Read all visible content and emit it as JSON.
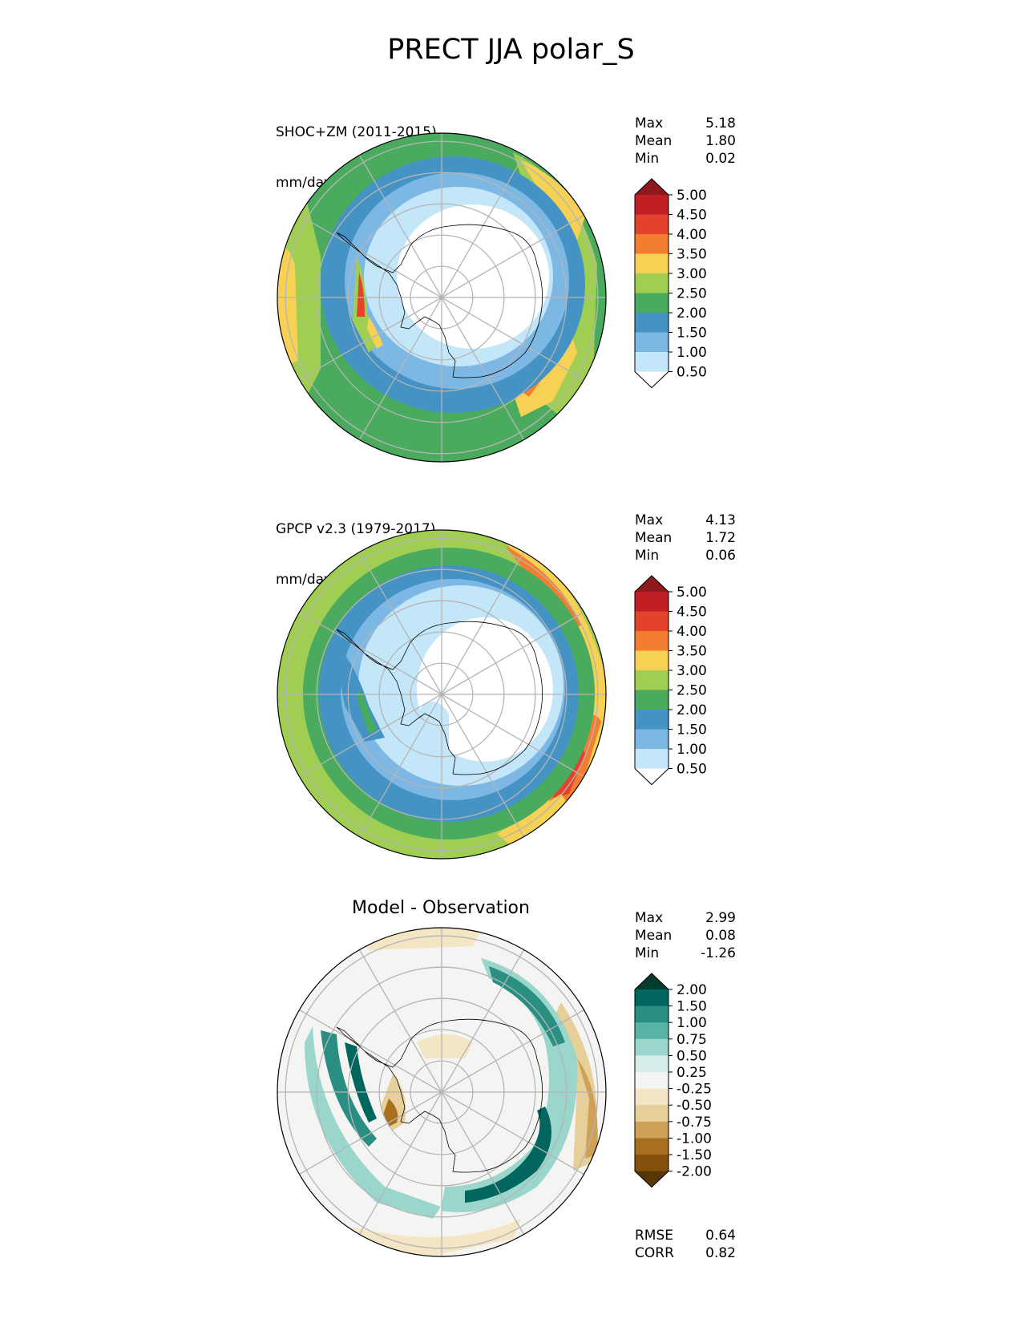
{
  "title": "PRECT JJA polar_S",
  "panels": [
    {
      "id": "model",
      "subtitle_line1": "SHOC+ZM (2011-2015)",
      "subtitle_line2": "mm/day",
      "stats": [
        {
          "label": "Max",
          "value": "5.18"
        },
        {
          "label": "Mean",
          "value": "1.80"
        },
        {
          "label": "Min",
          "value": "0.02"
        }
      ],
      "colorbar": {
        "ticks": [
          "5.00",
          "4.50",
          "4.00",
          "3.50",
          "3.00",
          "2.50",
          "2.00",
          "1.50",
          "1.00",
          "0.50"
        ],
        "colors_top_to_bottom": [
          "#8e1a1e",
          "#c11f26",
          "#e2432a",
          "#f47d30",
          "#f6d154",
          "#a0ce52",
          "#4aaa5e",
          "#4592c4",
          "#7db8e4",
          "#c3e6f8",
          "#ffffff"
        ]
      }
    },
    {
      "id": "observation",
      "subtitle_line1": "GPCP v2.3 (1979-2017)",
      "subtitle_line2": "mm/day",
      "stats": [
        {
          "label": "Max",
          "value": "4.13"
        },
        {
          "label": "Mean",
          "value": "1.72"
        },
        {
          "label": "Min",
          "value": "0.06"
        }
      ],
      "colorbar": {
        "ticks": [
          "5.00",
          "4.50",
          "4.00",
          "3.50",
          "3.00",
          "2.50",
          "2.00",
          "1.50",
          "1.00",
          "0.50"
        ],
        "colors_top_to_bottom": [
          "#8e1a1e",
          "#c11f26",
          "#e2432a",
          "#f47d30",
          "#f6d154",
          "#a0ce52",
          "#4aaa5e",
          "#4592c4",
          "#7db8e4",
          "#c3e6f8",
          "#ffffff"
        ]
      }
    },
    {
      "id": "difference",
      "title": "Model - Observation",
      "stats": [
        {
          "label": "Max",
          "value": "2.99"
        },
        {
          "label": "Mean",
          "value": "0.08"
        },
        {
          "label": "Min",
          "value": "-1.26"
        }
      ],
      "colorbar": {
        "ticks": [
          "2.00",
          "1.50",
          "1.00",
          "0.75",
          "0.50",
          "0.25",
          "-0.25",
          "-0.50",
          "-0.75",
          "-1.00",
          "-1.50",
          "-2.00"
        ],
        "colors_top_to_bottom": [
          "#053c30",
          "#01665e",
          "#2a8f83",
          "#5ab4a6",
          "#9ad6cb",
          "#d6ede9",
          "#f4f4f2",
          "#f4e5c4",
          "#e6cf98",
          "#cfa158",
          "#a8701e",
          "#84500c",
          "#573708"
        ]
      },
      "metrics": [
        {
          "label": "RMSE",
          "value": "0.64"
        },
        {
          "label": "CORR",
          "value": "0.82"
        }
      ]
    }
  ],
  "chart_data": [
    {
      "type": "heatmap",
      "projection": "south polar stereographic",
      "subtitle": "SHOC+ZM (2011-2015)",
      "units": "mm/day",
      "summary": {
        "max": 5.18,
        "mean": 1.8,
        "min": 0.02
      },
      "levels": [
        0.5,
        1.0,
        1.5,
        2.0,
        2.5,
        3.0,
        3.5,
        4.0,
        4.5,
        5.0
      ],
      "extend": "both"
    },
    {
      "type": "heatmap",
      "projection": "south polar stereographic",
      "subtitle": "GPCP v2.3 (1979-2017)",
      "units": "mm/day",
      "summary": {
        "max": 4.13,
        "mean": 1.72,
        "min": 0.06
      },
      "levels": [
        0.5,
        1.0,
        1.5,
        2.0,
        2.5,
        3.0,
        3.5,
        4.0,
        4.5,
        5.0
      ],
      "extend": "both"
    },
    {
      "type": "heatmap",
      "projection": "south polar stereographic",
      "title": "Model - Observation",
      "summary": {
        "max": 2.99,
        "mean": 0.08,
        "min": -1.26
      },
      "levels": [
        -2.0,
        -1.5,
        -1.0,
        -0.75,
        -0.5,
        -0.25,
        0.25,
        0.5,
        0.75,
        1.0,
        1.5,
        2.0
      ],
      "extend": "both",
      "rmse": 0.64,
      "corr": 0.82
    }
  ]
}
